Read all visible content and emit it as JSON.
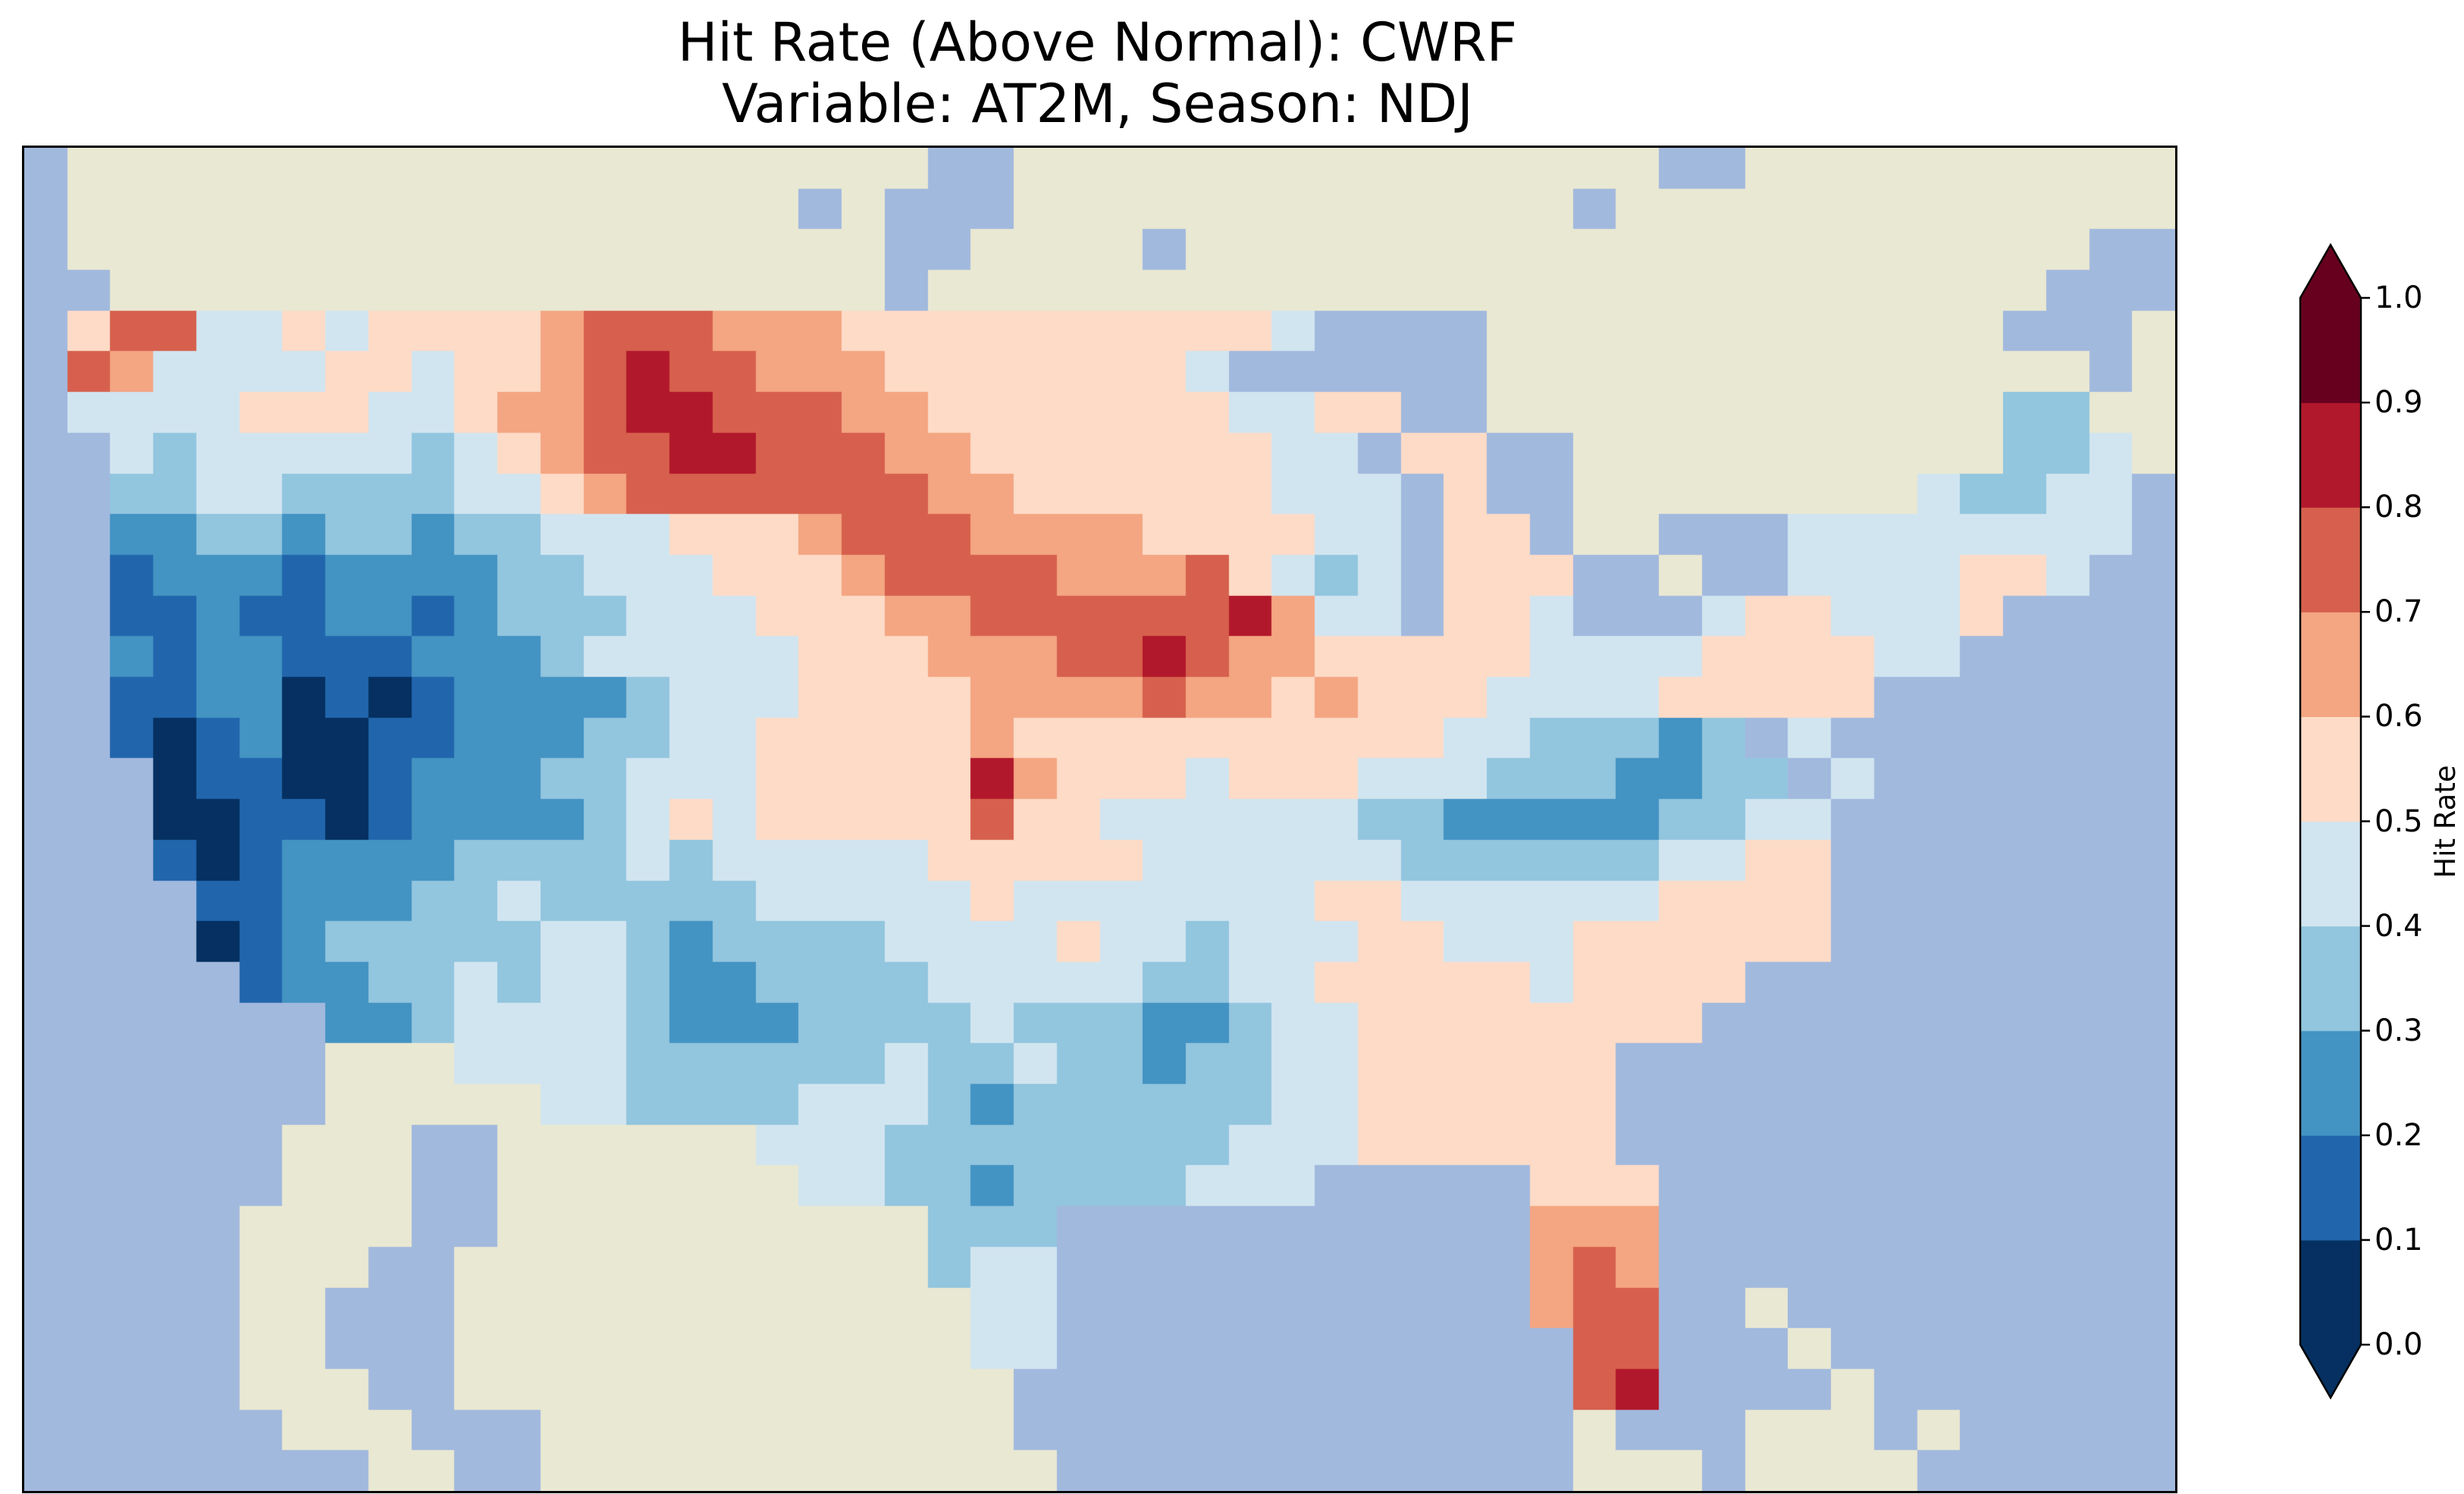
{
  "title": {
    "line1": "Hit Rate (Above Normal): CWRF",
    "line2": "Variable: AT2M, Season: NDJ"
  },
  "colorbar": {
    "label": "Hit Rate",
    "tick_labels": [
      "0.0",
      "0.1",
      "0.2",
      "0.3",
      "0.4",
      "0.5",
      "0.6",
      "0.7",
      "0.8",
      "0.9",
      "1.0"
    ]
  },
  "chart_data": {
    "type": "heatmap",
    "title": "Hit Rate (Above Normal): CWRF",
    "subtitle": "Variable: AT2M, Season: NDJ",
    "metric": "Hit Rate (Above Normal)",
    "model": "CWRF",
    "variable": "AT2M",
    "season": "NDJ",
    "colorbar_label": "Hit Rate",
    "value_range": [
      0.0,
      1.0
    ],
    "tick_values": [
      0.0,
      0.1,
      0.2,
      0.3,
      0.4,
      0.5,
      0.6,
      0.7,
      0.8,
      0.9,
      1.0
    ],
    "colormap": "RdBu_r, 10 discrete bins, extended triangles both ends",
    "palette": [
      "#053061",
      "#2166ac",
      "#4393c3",
      "#92c5de",
      "#d1e5f0",
      "#fddbc7",
      "#f4a582",
      "#d6604d",
      "#b2182b",
      "#67001f"
    ],
    "bin_ranges": [
      "0.0-0.1",
      "0.1-0.2",
      "0.2-0.3",
      "0.3-0.4",
      "0.4-0.5",
      "0.5-0.6",
      "0.6-0.7",
      "0.7-0.8",
      "0.8-0.9",
      "0.9-1.0"
    ],
    "map_colors": {
      "ocean": "#a2b9de",
      "land_outside_us": "#e9e8d2",
      "frame": "#000000"
    },
    "cell_encoding": {
      "~": "water (ocean / lakes)",
      "#": "land outside CONUS (no data)",
      "0": "hit rate 0.0-0.1",
      "1": "hit rate 0.1-0.2",
      "2": "hit rate 0.2-0.3",
      "3": "hit rate 0.3-0.4",
      "4": "hit rate 0.4-0.5",
      "5": "hit rate 0.5-0.6",
      "6": "hit rate 0.6-0.7",
      "7": "hit rate 0.7-0.8",
      "8": "hit rate 0.8-0.9",
      "9": "hit rate 0.9-1.0",
      "note": "each row = 50 cells in groups of 10 separated by spaces; spaces are ignored"
    },
    "grid": {
      "ncols": 50,
      "nrows": 33,
      "rows": [
        "~######### ########## #~~####### ########~~ ##########",
        "~######### ########~# ~~~####### ######~### ##########",
        "~######### ########## ~~####~### ########## ########~~",
        "~~######## ########## ~######### ########## #######~~~",
        "~577445455 5567776665 5555555554 ~~~~###### ######~~~#",
        "~764444554 5567877666 55555554~~ ~~~~###### ########~#",
        "~444455544 5667887776 6555555544 55~~###### ######33##",
        "~~43444443 4567788777 6655555554 4~55~~#### ######334#",
        "~~33443333 4456777777 7665555554 44~5~~#### ####43344~",
        "~~22332332 3344455567 7766665555 44~55~##~~ ~44444444~",
        "~~12221222 2334445556 7777666754 34~555~~#~ ~4444554~~",
        "~~11211221 2333444555 6677777786 44~554~~~4 554445~~~~",
        "~~21221112 2234444455 5666778766 5555544445 55544~~~~~",
        "~~11220101 2222344455 5566667665 6555444455 555~~~~~~~",
        "~~10120011 2223344555 5565555555 5554433323 ~4~~~~~~~~",
        "~~~0110012 2233444555 5586555455 5444333223 3~4~~~~~~~",
        "~~~0011012 2223454555 5575544444 4332222233 44~~~~~~~~",
        "~~~1012222 3333434444 4555554444 4433333344 55~~~~~~~~",
        "~~~~112223 3433333444 4454444444 5544444455 55~~~~~~~~",
        "~~~~012333 3344323333 4444544344 4554445555 55~~~~~~~~",
        "~~~~~12233 4344322333 3444443344 5555545555 ~~~~~~~~~~",
        "~~~~~~~223 4444322233 3343332234 455555555~ ~~~~~~~~~~",
        "~~~~~~~### 4444333333 4334332334 4555555~~~ ~~~~~~~~~~",
        "~~~~~~~### ##44333344 4323333334 4555555~~~ ~~~~~~~~~~",
        "~~~~~~###~ ~######444 3333333344 4555555~~~ ~~~~~~~~~~",
        "~~~~~~###~ ~#######44 3323333444 ~~~~~555~~ ~~~~~~~~~~",
        "~~~~~####~ ~######### #333~~~~~~ ~~~~~666~~ ~~~~~~~~~~",
        "~~~~~###~~ ########## #344~~~~~~ ~~~~~676~~ ~~~~~~~~~~",
        "~~~~~##~~~ ########## ##44~~~~~~ ~~~~~677~~ #~~~~~~~~~",
        "~~~~~##~~~ ########## ##44~~~~~~ ~~~~~~77~~ ~#~~~~~~~~",
        "~~~~~###~~ ########## ###~~~~~~~ ~~~~~~78~~ ~~#~~~~~~~",
        "~~~~~~###~ ~~######## ###~~~~~~~ ~~~~~~#~~~ ###~#~~~~~",
        "~~~~~~~~## ~~######## ####~~~~~~ ~~~~~~###~ ####~~~~~~"
      ]
    },
    "notable_features": [
      "Very low hit rates (0.0-0.2, dark navy) over the Great Basin: Nevada, eastern Oregon, southern Idaho, western Utah and the central California coast",
      "High hit rates (0.7-0.9, orange/red) in a diagonal band from northern Montana through the Dakotas and northern Nebraska into Iowa and southwest Wisconsin",
      "Small red/orange spot on the Washington Pacific coast near Puget Sound",
      "Localized dark-orange maximum in central Kansas",
      "High hit rates (0.6-0.8) over central and southern Florida, reddest near the southern tip",
      "Low hit rates (0.2-0.4) over eastern New Mexico / west Texas, east Texas-Louisiana, and the Kentucky-West Virginia region",
      "Near-neutral values (0.4-0.6, pale pink/pale blue) across much of the Midwest, Southeast and Northeast; small blue patch over northern Maine",
      "Surrounding ocean shown in light blue; Canada, Mexico, Cuba and the Bahamas shown in beige (no data)"
    ]
  }
}
